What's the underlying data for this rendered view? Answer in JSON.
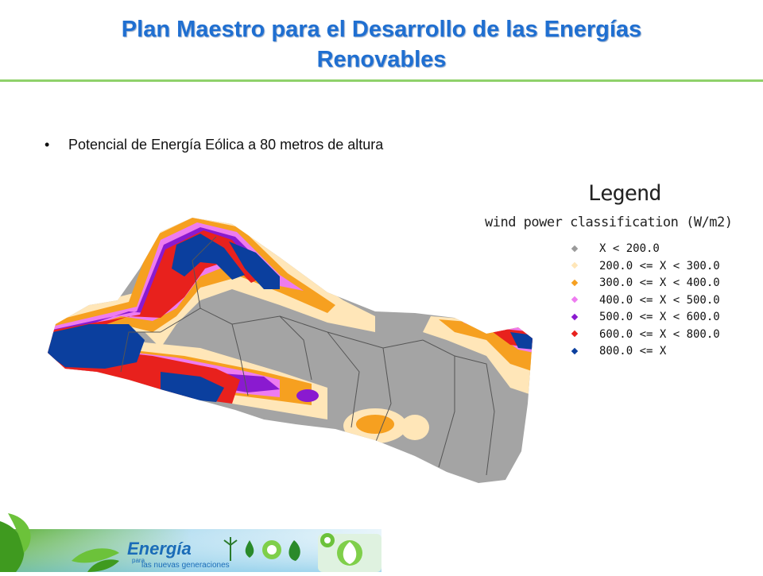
{
  "slide": {
    "title_line1": "Plan Maestro para el Desarrollo de las Energías",
    "title_line2": "Renovables",
    "bullet_marker": "•",
    "bullet_text": "Potencial de Energía Eólica a 80 metros de altura"
  },
  "legend": {
    "title": "Legend",
    "subtitle": "wind power classification (W/m2)",
    "items": [
      {
        "label": "X < 200.0",
        "color": "#9a9a9a"
      },
      {
        "label": "200.0 <= X < 300.0",
        "color": "#ffe6b8"
      },
      {
        "label": "300.0 <= X < 400.0",
        "color": "#f6a020"
      },
      {
        "label": "400.0 <= X < 500.0",
        "color": "#ee7cf0"
      },
      {
        "label": "500.0 <= X < 600.0",
        "color": "#8a1ad0"
      },
      {
        "label": "600.0 <= X < 800.0",
        "color": "#e8211d"
      },
      {
        "label": "800.0 <= X",
        "color": "#0b3f9e"
      }
    ]
  },
  "footer": {
    "brand": "Energía",
    "tagline_small": "para",
    "tagline": "las nuevas generaciones"
  }
}
